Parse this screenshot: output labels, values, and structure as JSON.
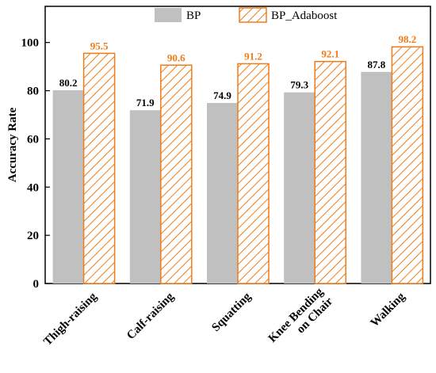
{
  "chart_data": {
    "type": "bar",
    "categories": [
      "Thigh-raising",
      "Calf-raising",
      "Squatting",
      "Knee Bending on Chair",
      "Walking"
    ],
    "category_lines": [
      [
        "Thigh-raising"
      ],
      [
        "Calf-raising"
      ],
      [
        "Squatting"
      ],
      [
        "Knee Bending",
        "on Chair"
      ],
      [
        "Walking"
      ]
    ],
    "series": [
      {
        "name": "BP",
        "values": [
          80.2,
          71.9,
          74.9,
          79.3,
          87.8
        ],
        "labels": [
          "80.2",
          "71.9",
          "74.9",
          "79.3",
          "87.8"
        ],
        "color": "#c0c0c0",
        "label_color": "#000000",
        "pattern": "solid"
      },
      {
        "name": "BP_Adaboost",
        "values": [
          95.5,
          90.6,
          91.2,
          92.1,
          98.2
        ],
        "labels": [
          "95.5",
          "90.6",
          "91.2",
          "92.1",
          "98.2"
        ],
        "color": "#ed7d1a",
        "label_color": "#ed7d1a",
        "pattern": "diagonal-hatch"
      }
    ],
    "title": "",
    "xlabel": "",
    "ylabel": "Accuracy Rate",
    "ylim": [
      0,
      115
    ],
    "yticks": [
      0,
      20,
      40,
      60,
      80,
      100
    ],
    "grid": false,
    "legend_position": "top"
  }
}
